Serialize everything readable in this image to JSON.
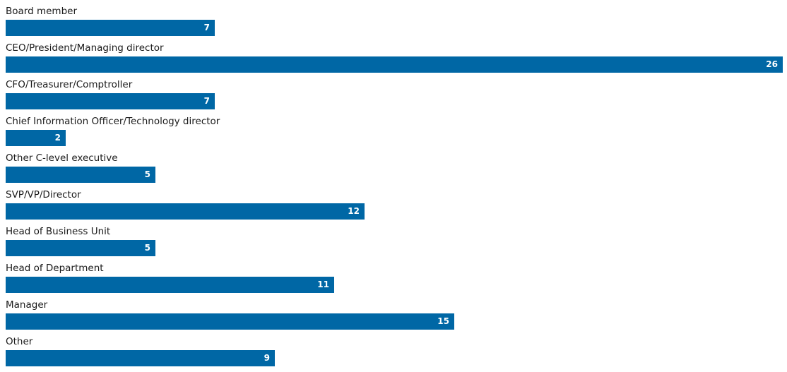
{
  "chart_data": {
    "type": "bar",
    "orientation": "horizontal",
    "categories": [
      "Board member",
      "CEO/President/Managing director",
      "CFO/Treasurer/Comptroller",
      "Chief Information Officer/Technology director",
      "Other C-level executive",
      "SVP/VP/Director",
      "Head of Business Unit",
      "Head of Department",
      "Manager",
      "Other"
    ],
    "values": [
      7,
      26,
      7,
      2,
      5,
      12,
      5,
      11,
      15,
      9
    ],
    "xlim": [
      0,
      26
    ],
    "title": "",
    "xlabel": "",
    "ylabel": "",
    "grid": false,
    "legend": "none",
    "bar_color": "#0067a5",
    "value_label_color": "#ffffff"
  }
}
